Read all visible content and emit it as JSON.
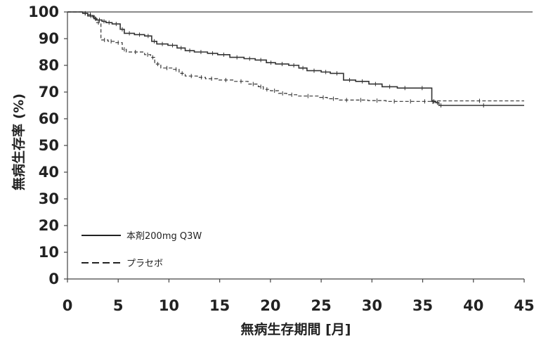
{
  "chart_data": {
    "type": "line",
    "title": "",
    "xlabel": "無病生存期間 [月]",
    "ylabel": "無病生存率 (%)",
    "xlim": [
      0,
      45
    ],
    "ylim": [
      0,
      100
    ],
    "x_ticks": [
      0,
      5,
      10,
      15,
      20,
      25,
      30,
      35,
      40,
      45
    ],
    "y_ticks": [
      0,
      10,
      20,
      30,
      40,
      50,
      60,
      70,
      80,
      90,
      100
    ],
    "grid": false,
    "legend_position": "bottom-left",
    "series": [
      {
        "name": "本剤200mg Q3W",
        "style": "solid",
        "color": "#333333",
        "x": [
          0,
          1.5,
          2.0,
          2.6,
          2.9,
          3.4,
          3.8,
          4.4,
          5.2,
          5.6,
          6.6,
          7.6,
          8.3,
          8.8,
          9.9,
          10.8,
          11.6,
          12.5,
          13.8,
          14.8,
          16.0,
          17.4,
          18.5,
          19.6,
          20.5,
          21.8,
          22.8,
          23.6,
          25.0,
          25.9,
          27.2,
          28.4,
          29.7,
          31.0,
          32.5,
          34.0,
          35.9,
          36.3,
          36.6,
          37.0,
          45.0
        ],
        "y": [
          100,
          99.5,
          98.5,
          97.5,
          97,
          96.5,
          96,
          95.5,
          93.5,
          92,
          91.5,
          91,
          89,
          88,
          87.5,
          86.5,
          85.5,
          85,
          84.5,
          84,
          83,
          82.5,
          82,
          81,
          80.5,
          80,
          79,
          78,
          77.5,
          77,
          74.5,
          74,
          73,
          72,
          71.5,
          71.5,
          66.5,
          66,
          65,
          65,
          65
        ]
      },
      {
        "name": "プラセボ",
        "style": "dashed",
        "color": "#333333",
        "x": [
          0,
          1.5,
          2.0,
          2.5,
          2.8,
          3.3,
          4.0,
          4.6,
          5.4,
          5.8,
          7.6,
          8.2,
          8.6,
          9.2,
          10.4,
          11.0,
          11.6,
          12.8,
          13.6,
          14.8,
          16.4,
          17.8,
          18.8,
          19.3,
          20.0,
          20.8,
          21.6,
          22.6,
          24.8,
          25.6,
          26.8,
          28.2,
          29.6,
          31.4,
          33.0,
          34.6,
          35.8,
          36.2,
          45.0
        ],
        "y": [
          100,
          99.5,
          99,
          98,
          96,
          89.5,
          89,
          88.5,
          86,
          85,
          84,
          83,
          80.5,
          79,
          78.5,
          77,
          76,
          75.5,
          75,
          74.5,
          74,
          73,
          72,
          71,
          70.5,
          69.5,
          69,
          68.5,
          68,
          67.5,
          67,
          67,
          66.8,
          66.5,
          66.5,
          66.5,
          66.3,
          66.7,
          66.7
        ]
      }
    ]
  }
}
